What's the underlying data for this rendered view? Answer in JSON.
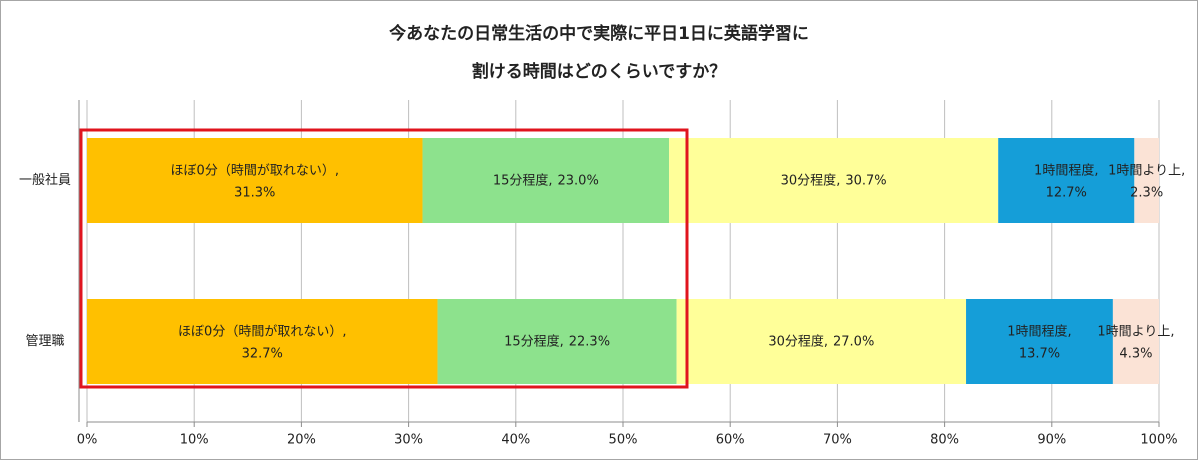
{
  "chart_data": {
    "type": "stacked_bar_horizontal_100",
    "title": [
      "今あなたの日常生活の中で実際に平日1日に英語学習に",
      "割ける時間はどのくらいですか？"
    ],
    "categories": [
      "一般社員",
      "管理職"
    ],
    "label_separator": ",",
    "series": [
      {
        "name": "ほぼ0分（時間が取れない）",
        "color": "#ffc000",
        "values": [
          31.3,
          32.7
        ],
        "value_labels": [
          "31.3%",
          "32.7%"
        ]
      },
      {
        "name": "15分程度",
        "color": "#8de28d",
        "values": [
          23.0,
          22.3
        ],
        "value_labels": [
          "23.0%",
          "22.3%"
        ]
      },
      {
        "name": "30分程度",
        "color": "#ffff99",
        "values": [
          30.7,
          27.0
        ],
        "value_labels": [
          "30.7%",
          "27.0%"
        ]
      },
      {
        "name": "1時間程度",
        "color": "#159ed8",
        "values": [
          12.7,
          13.7
        ],
        "value_labels": [
          "12.7%",
          "13.7%"
        ]
      },
      {
        "name": "1時間より上",
        "color": "#fbe3d6",
        "values": [
          2.3,
          4.3
        ],
        "value_labels": [
          "2.3%",
          "4.3%"
        ]
      }
    ],
    "xlim": [
      0,
      100
    ],
    "xticks": [
      {
        "value": 0,
        "label": "0%"
      },
      {
        "value": 10,
        "label": "10%"
      },
      {
        "value": 20,
        "label": "20%"
      },
      {
        "value": 30,
        "label": "30%"
      },
      {
        "value": 40,
        "label": "40%"
      },
      {
        "value": 50,
        "label": "50%"
      },
      {
        "value": 60,
        "label": "60%"
      },
      {
        "value": 70,
        "label": "70%"
      },
      {
        "value": 80,
        "label": "80%"
      },
      {
        "value": 90,
        "label": "90%"
      },
      {
        "value": 100,
        "label": "100%"
      }
    ],
    "grid": true
  }
}
